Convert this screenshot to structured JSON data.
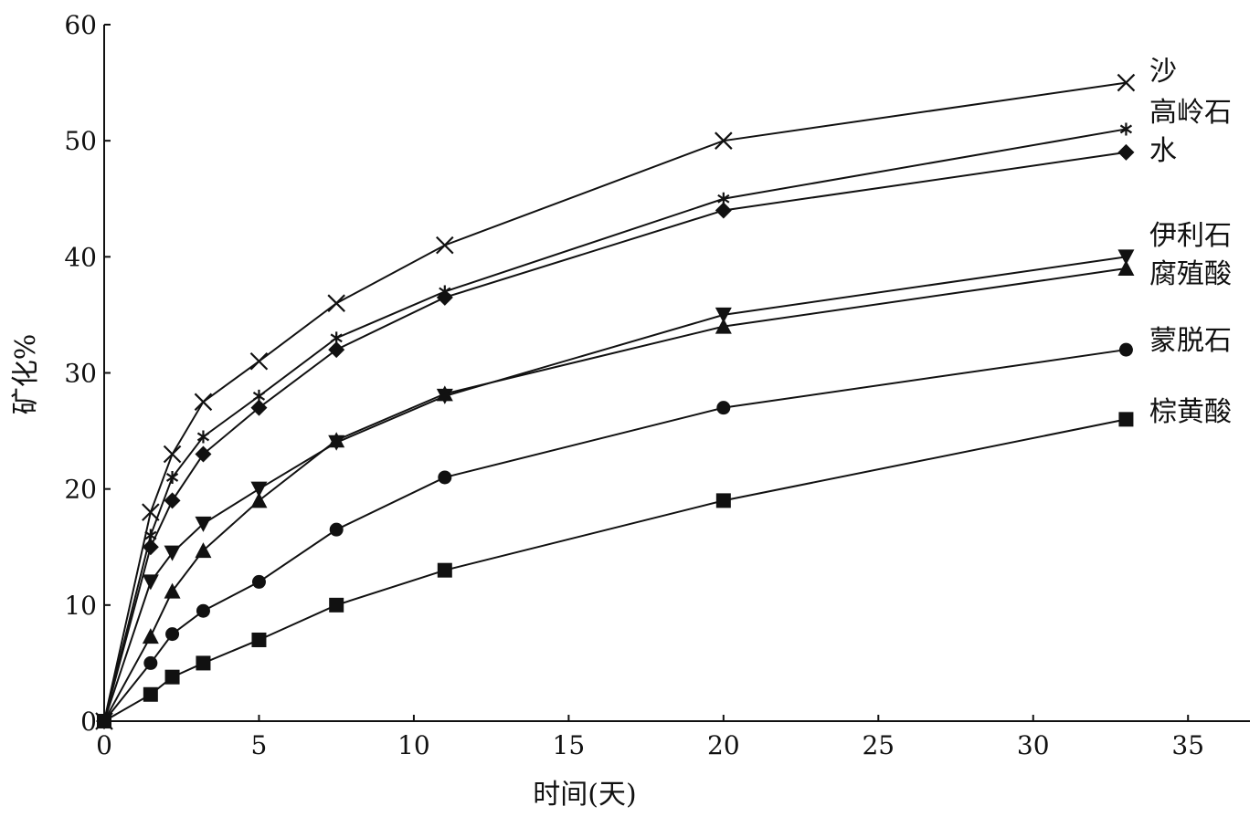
{
  "chart_data": {
    "type": "line",
    "title": "",
    "xlabel": "时间(天)",
    "ylabel": "矿化%",
    "xlim": [
      0,
      37
    ],
    "ylim": [
      0,
      60
    ],
    "xticks": [
      0,
      5,
      10,
      15,
      20,
      25,
      30,
      35
    ],
    "yticks": [
      0,
      10,
      20,
      30,
      40,
      50,
      60
    ],
    "grid": false,
    "legend": "series labels at right end of lines",
    "x": [
      0,
      1.5,
      2.2,
      3.2,
      5,
      7.5,
      11,
      20,
      33
    ],
    "series": [
      {
        "name": "沙",
        "marker": "x",
        "values": [
          0,
          18,
          23,
          27.5,
          31,
          36,
          41,
          50,
          55
        ]
      },
      {
        "name": "高岭石",
        "marker": "asterisk",
        "values": [
          0,
          16,
          21,
          24.5,
          28,
          33,
          37,
          45,
          51
        ]
      },
      {
        "name": "水",
        "marker": "diamond",
        "values": [
          0,
          15,
          19,
          23,
          27,
          32,
          36.5,
          44,
          49
        ]
      },
      {
        "name": "伊利石",
        "marker": "triangle-down",
        "values": [
          0,
          12,
          14.5,
          17,
          20,
          24,
          28,
          35,
          40
        ]
      },
      {
        "name": "腐殖酸",
        "marker": "triangle-up",
        "values": [
          0,
          7.3,
          11.2,
          14.7,
          19,
          24.2,
          28.2,
          34,
          39
        ]
      },
      {
        "name": "蒙脱石",
        "marker": "circle",
        "values": [
          0,
          5,
          7.5,
          9.5,
          12,
          16.5,
          21,
          27,
          32
        ]
      },
      {
        "name": "棕黄酸",
        "marker": "square",
        "values": [
          0,
          2.3,
          3.8,
          5,
          7,
          10,
          13,
          19,
          26
        ]
      }
    ]
  }
}
